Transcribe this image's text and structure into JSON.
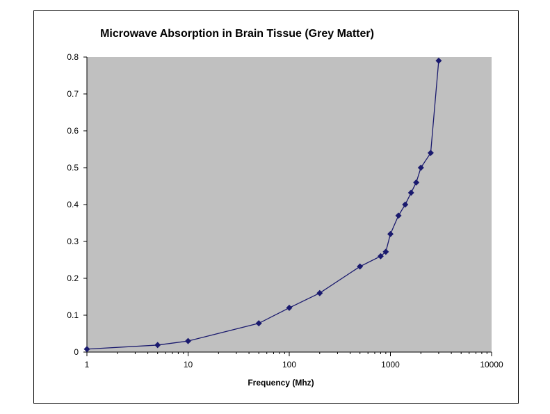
{
  "chart_data": {
    "type": "line",
    "title": "Microwave Absorption in Brain Tissue   (Grey Matter)",
    "xlabel": "Frequency (Mhz)",
    "ylabel": "",
    "x_scale": "log",
    "xlim": [
      1,
      10000
    ],
    "ylim": [
      0,
      0.8
    ],
    "x_ticks": [
      1,
      10,
      100,
      1000,
      10000
    ],
    "x_tick_labels": [
      "1",
      "10",
      "100",
      "1000",
      "10000"
    ],
    "y_ticks": [
      0,
      0.1,
      0.2,
      0.3,
      0.4,
      0.5,
      0.6,
      0.7,
      0.8
    ],
    "y_tick_labels": [
      "0",
      "0.1",
      "0.2",
      "0.3",
      "0.4",
      "0.5",
      "0.6",
      "0.7",
      "0.8"
    ],
    "grid": false,
    "legend": "none",
    "plot_background": "#c0c0c0",
    "series": [
      {
        "marker": "diamond",
        "color": "#1a1a6e",
        "x": [
          1,
          5,
          10,
          50,
          100,
          200,
          500,
          800,
          900,
          1000,
          1200,
          1400,
          1600,
          1800,
          2000,
          2500,
          3000
        ],
        "y": [
          0.008,
          0.019,
          0.03,
          0.078,
          0.12,
          0.16,
          0.232,
          0.26,
          0.272,
          0.32,
          0.37,
          0.4,
          0.432,
          0.46,
          0.5,
          0.54,
          0.79
        ]
      }
    ]
  }
}
